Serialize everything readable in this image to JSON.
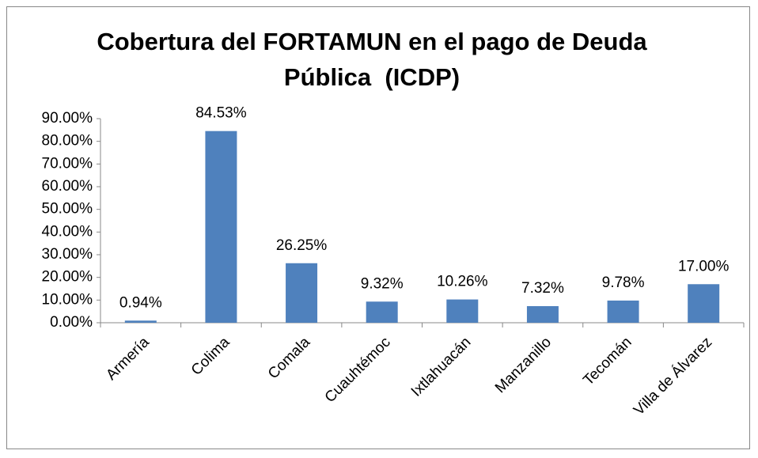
{
  "chart_data": {
    "type": "bar",
    "title": "Cobertura del FORTAMUN en el pago de Deuda Pública  (ICDP)",
    "categories": [
      "Armería",
      "Colima",
      "Comala",
      "Cuauhtémoc",
      "Ixtlahuacán",
      "Manzanillo",
      "Tecomán",
      "Villa de Álvarez"
    ],
    "values": [
      0.94,
      84.53,
      26.25,
      9.32,
      10.26,
      7.32,
      9.78,
      17.0
    ],
    "value_labels": [
      "0.94%",
      "84.53%",
      "26.25%",
      "9.32%",
      "10.26%",
      "7.32%",
      "9.78%",
      "17.00%"
    ],
    "color": "#4f81bd",
    "ylim": [
      0,
      90
    ],
    "yticks": [
      {
        "value": 0,
        "label": "0.00%"
      },
      {
        "value": 10,
        "label": "10.00%"
      },
      {
        "value": 20,
        "label": "20.00%"
      },
      {
        "value": 30,
        "label": "30.00%"
      },
      {
        "value": 40,
        "label": "40.00%"
      },
      {
        "value": 50,
        "label": "50.00%"
      },
      {
        "value": 60,
        "label": "60.00%"
      },
      {
        "value": 70,
        "label": "70.00%"
      },
      {
        "value": 80,
        "label": "80.00%"
      },
      {
        "value": 90,
        "label": "90.00%"
      }
    ],
    "grid": false
  }
}
